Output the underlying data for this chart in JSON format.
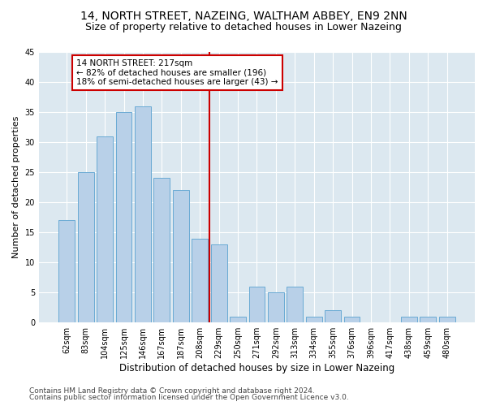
{
  "title": "14, NORTH STREET, NAZEING, WALTHAM ABBEY, EN9 2NN",
  "subtitle": "Size of property relative to detached houses in Lower Nazeing",
  "xlabel": "Distribution of detached houses by size in Lower Nazeing",
  "ylabel": "Number of detached properties",
  "categories": [
    "62sqm",
    "83sqm",
    "104sqm",
    "125sqm",
    "146sqm",
    "167sqm",
    "187sqm",
    "208sqm",
    "229sqm",
    "250sqm",
    "271sqm",
    "292sqm",
    "313sqm",
    "334sqm",
    "355sqm",
    "376sqm",
    "396sqm",
    "417sqm",
    "438sqm",
    "459sqm",
    "480sqm"
  ],
  "values": [
    17,
    25,
    31,
    35,
    36,
    24,
    22,
    14,
    13,
    1,
    6,
    5,
    6,
    1,
    2,
    1,
    0,
    0,
    1,
    1,
    1
  ],
  "bar_color": "#b8d0e8",
  "bar_edgecolor": "#6aaad4",
  "bar_linewidth": 0.7,
  "vline_x": 7.5,
  "vline_color": "#cc0000",
  "annotation_text": "14 NORTH STREET: 217sqm\n← 82% of detached houses are smaller (196)\n18% of semi-detached houses are larger (43) →",
  "annotation_box_edgecolor": "#cc0000",
  "annotation_box_facecolor": "white",
  "ylim": [
    0,
    45
  ],
  "yticks": [
    0,
    5,
    10,
    15,
    20,
    25,
    30,
    35,
    40,
    45
  ],
  "background_color": "#dce8f0",
  "grid_color": "white",
  "footer_line1": "Contains HM Land Registry data © Crown copyright and database right 2024.",
  "footer_line2": "Contains public sector information licensed under the Open Government Licence v3.0.",
  "title_fontsize": 10,
  "subtitle_fontsize": 9,
  "xlabel_fontsize": 8.5,
  "ylabel_fontsize": 8,
  "tick_fontsize": 7,
  "footer_fontsize": 6.5,
  "annot_fontsize": 7.5
}
